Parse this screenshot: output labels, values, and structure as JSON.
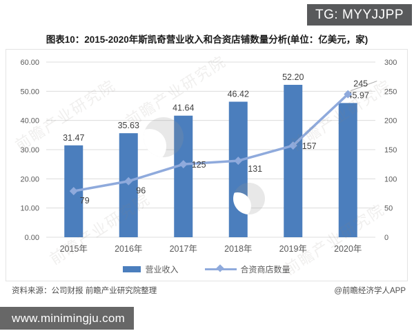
{
  "badge": {
    "text": "TG: MYYJJPP"
  },
  "title": "图表10：2015-2020年斯凯奇营业收入和合资店铺数量分析(单位：亿美元，家)",
  "footer": {
    "source": "资料来源：公司财报 前瞻产业研究院整理",
    "credit": "@前瞻经济学人APP",
    "website": "www.minimingju.com"
  },
  "watermark": {
    "text": "前瞻产业研究院"
  },
  "colors": {
    "bar": "#4b7ebd",
    "line": "#8faadc",
    "axis_text": "#595959",
    "data_label": "#404040",
    "grid": "#dcdcdc",
    "leader": "#a6a6a6",
    "badge_bg": "#58595b",
    "website_bg": "#676767"
  },
  "chart_data": {
    "type": "bar+line combo",
    "categories": [
      "2015年",
      "2016年",
      "2017年",
      "2018年",
      "2019年",
      "2020年"
    ],
    "series": [
      {
        "name": "营业收入",
        "type": "bar",
        "axis": "left",
        "values": [
          31.47,
          35.63,
          41.64,
          46.42,
          52.2,
          45.97
        ],
        "labels": [
          "31.47",
          "35.63",
          "41.64",
          "46.42",
          "52.20",
          "45.97"
        ]
      },
      {
        "name": "合资商店数量",
        "type": "line",
        "axis": "right",
        "values": [
          79,
          96,
          125,
          131,
          157,
          245
        ],
        "labels": [
          "79",
          "96",
          "125",
          "131",
          "157",
          "245"
        ]
      }
    ],
    "left_axis": {
      "min": 0,
      "max": 60,
      "ticks": [
        "0.00",
        "10.00",
        "20.00",
        "30.00",
        "40.00",
        "50.00",
        "60.00"
      ]
    },
    "right_axis": {
      "min": 0,
      "max": 300,
      "ticks": [
        "0",
        "50",
        "100",
        "150",
        "200",
        "250",
        "300"
      ]
    },
    "legend_position": "bottom",
    "grid": true,
    "units": "亿美元 / 家"
  }
}
